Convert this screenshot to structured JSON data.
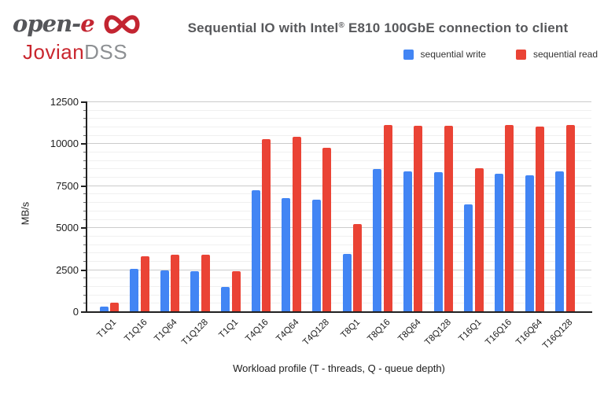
{
  "logo": {
    "open_prefix": "open-",
    "open_e": "e",
    "infinity_icon": "infinity-icon",
    "product_red": "Jovian",
    "product_gray": "DSS",
    "brand_red": "#c32531",
    "brand_gray": "#55565a"
  },
  "header": {
    "title_prefix": "Sequential IO with Intel",
    "title_reg": "®",
    "title_suffix": " E810 100GbE connection to client"
  },
  "legend": {
    "items": [
      {
        "label": "sequential write",
        "color": "#4285f4"
      },
      {
        "label": "sequential read",
        "color": "#ea4335"
      }
    ]
  },
  "chart_data": {
    "type": "bar",
    "title": "Sequential IO with Intel® E810 100GbE connection to client",
    "xlabel": "Workload profile (T - threads, Q - queue depth)",
    "ylabel": "MB/s",
    "ylim": [
      0,
      12500
    ],
    "yticks": [
      0,
      2500,
      5000,
      7500,
      10000,
      12500
    ],
    "minor_grid_step": 500,
    "grid": true,
    "legend_position": "top-right",
    "categories": [
      "T1Q1",
      "T1Q16",
      "T1Q64",
      "T1Q128",
      "T1Q1",
      "T4Q16",
      "T4Q64",
      "T4Q128",
      "T8Q1",
      "T8Q16",
      "T8Q64",
      "T8Q128",
      "T16Q1",
      "T16Q16",
      "T16Q64",
      "T16Q128"
    ],
    "series": [
      {
        "name": "sequential write",
        "color": "#4285f4",
        "values": [
          330,
          2560,
          2500,
          2450,
          1510,
          7270,
          6800,
          6700,
          3470,
          8500,
          8400,
          8350,
          6430,
          8250,
          8130,
          8380
        ]
      },
      {
        "name": "sequential read",
        "color": "#ea4335",
        "values": [
          560,
          3330,
          3440,
          3400,
          2430,
          10320,
          10430,
          9780,
          5250,
          11120,
          11100,
          11100,
          8560,
          11130,
          11070,
          11160
        ]
      }
    ]
  }
}
